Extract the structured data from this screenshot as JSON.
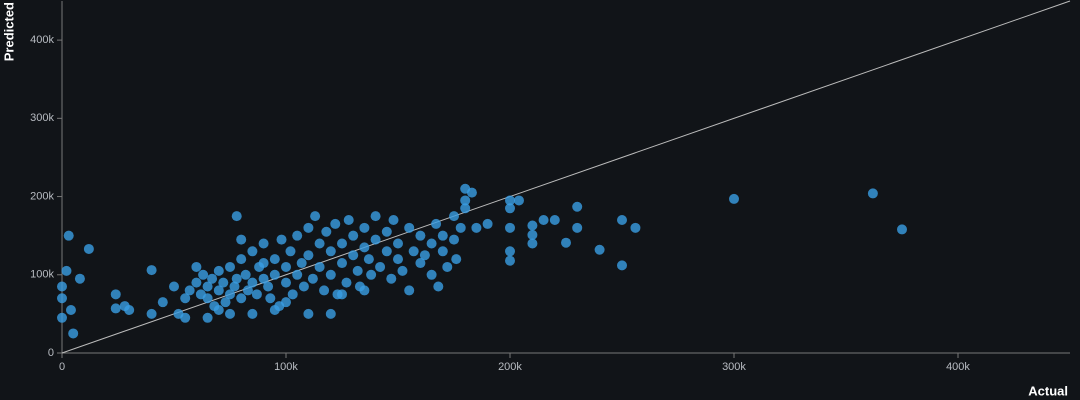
{
  "chart_data": {
    "type": "scatter",
    "x_label": "Actual",
    "y_label": "Predicted",
    "color": "#3a9ee4",
    "xlim": [
      0,
      450000
    ],
    "ylim": [
      0,
      450000
    ],
    "xticks": [
      0,
      {
        "value": 100000,
        "label": "100k"
      },
      {
        "value": 200000,
        "label": "200k"
      },
      {
        "value": 300000,
        "label": "300k"
      },
      {
        "value": 400000,
        "label": "400k"
      }
    ],
    "yticks": [
      0,
      {
        "value": 100000,
        "label": "100k"
      },
      {
        "value": 200000,
        "label": "200k"
      },
      {
        "value": 300000,
        "label": "300k"
      },
      {
        "value": 400000,
        "label": "400k"
      }
    ],
    "grid": false,
    "x": [
      300000,
      362000,
      375000,
      250000,
      240000,
      250000,
      256000,
      230000,
      230000,
      225000,
      215000,
      220000,
      210000,
      210000,
      210000,
      200000,
      200000,
      200000,
      200000,
      200000,
      204000,
      190000,
      185000,
      180000,
      183000,
      180000,
      180000,
      175000,
      0,
      0,
      0,
      2000,
      3000,
      12000,
      8000,
      5000,
      4000,
      24000,
      28000,
      24000,
      30000,
      40000,
      40000,
      45000,
      50000,
      52000,
      55000,
      60000,
      62000,
      63000,
      65000,
      65000,
      67000,
      68000,
      70000,
      70000,
      72000,
      73000,
      75000,
      75000,
      77000,
      78000,
      78000,
      80000,
      80000,
      82000,
      83000,
      85000,
      85000,
      87000,
      88000,
      90000,
      90000,
      92000,
      93000,
      95000,
      95000,
      97000,
      98000,
      100000,
      100000,
      102000,
      103000,
      105000,
      105000,
      107000,
      108000,
      110000,
      110000,
      112000,
      113000,
      115000,
      115000,
      117000,
      118000,
      120000,
      120000,
      122000,
      123000,
      125000,
      125000,
      127000,
      128000,
      130000,
      130000,
      132000,
      133000,
      135000,
      135000,
      137000,
      138000,
      140000,
      140000,
      142000,
      145000,
      145000,
      147000,
      148000,
      150000,
      150000,
      152000,
      155000,
      155000,
      157000,
      160000,
      160000,
      162000,
      165000,
      165000,
      167000,
      170000,
      170000,
      172000,
      175000,
      176000,
      178000,
      168000,
      120000,
      110000,
      125000,
      95000,
      85000,
      75000,
      70000,
      65000,
      55000,
      57000,
      60000,
      80000,
      90000,
      100000,
      135000
    ],
    "y": [
      197000,
      204000,
      158000,
      112000,
      132000,
      170000,
      160000,
      187000,
      160000,
      141000,
      170000,
      170000,
      163000,
      151000,
      140000,
      118000,
      130000,
      160000,
      185000,
      195000,
      195000,
      165000,
      160000,
      210000,
      205000,
      195000,
      185000,
      175000,
      70000,
      45000,
      85000,
      105000,
      150000,
      133000,
      95000,
      25000,
      55000,
      75000,
      60000,
      57000,
      55000,
      106000,
      50000,
      65000,
      85000,
      50000,
      45000,
      90000,
      75000,
      100000,
      85000,
      70000,
      95000,
      60000,
      80000,
      105000,
      90000,
      65000,
      110000,
      75000,
      85000,
      95000,
      175000,
      70000,
      120000,
      100000,
      80000,
      90000,
      130000,
      75000,
      110000,
      95000,
      140000,
      85000,
      70000,
      120000,
      100000,
      60000,
      145000,
      110000,
      90000,
      130000,
      75000,
      150000,
      100000,
      115000,
      85000,
      160000,
      125000,
      95000,
      175000,
      110000,
      140000,
      80000,
      155000,
      130000,
      100000,
      165000,
      75000,
      140000,
      115000,
      90000,
      170000,
      125000,
      150000,
      105000,
      85000,
      160000,
      135000,
      120000,
      100000,
      145000,
      175000,
      110000,
      155000,
      130000,
      95000,
      170000,
      140000,
      120000,
      105000,
      160000,
      80000,
      130000,
      115000,
      150000,
      125000,
      140000,
      100000,
      165000,
      130000,
      150000,
      110000,
      145000,
      120000,
      160000,
      85000,
      50000,
      50000,
      75000,
      55000,
      50000,
      50000,
      55000,
      45000,
      70000,
      80000,
      110000,
      145000,
      115000,
      65000,
      80000
    ]
  }
}
